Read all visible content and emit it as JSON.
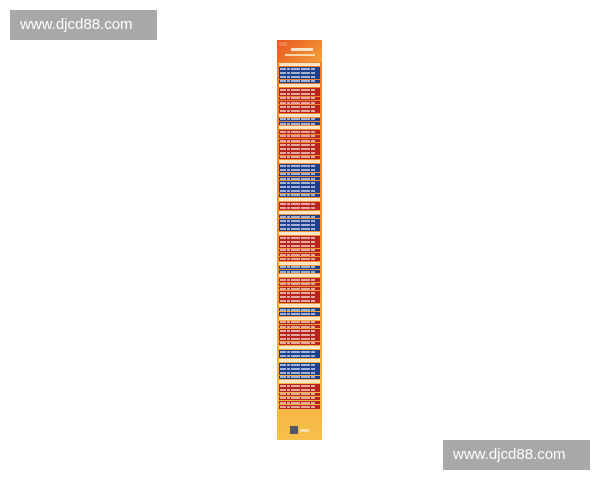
{
  "watermark": {
    "text": "www.djcd88.com"
  },
  "colors": {
    "blue": "#1d3f8f",
    "red": "#b8231c",
    "header": "#e8541e",
    "footer": "#f5c04a"
  },
  "blocks": [
    {
      "color": "blue",
      "rows": 4
    },
    {
      "color": "red",
      "rows": 6
    },
    {
      "color": "blue",
      "rows": 2
    },
    {
      "color": "red",
      "rows": 7
    },
    {
      "color": "blue",
      "rows": 8
    },
    {
      "color": "red",
      "rows": 2
    },
    {
      "color": "blue",
      "rows": 4
    },
    {
      "color": "red",
      "rows": 6
    },
    {
      "color": "blue",
      "rows": 2
    },
    {
      "color": "red",
      "rows": 6
    },
    {
      "color": "blue",
      "rows": 2
    },
    {
      "color": "red",
      "rows": 6
    },
    {
      "color": "blue",
      "rows": 2
    },
    {
      "color": "blue",
      "rows": 4
    },
    {
      "color": "red",
      "rows": 6
    }
  ]
}
